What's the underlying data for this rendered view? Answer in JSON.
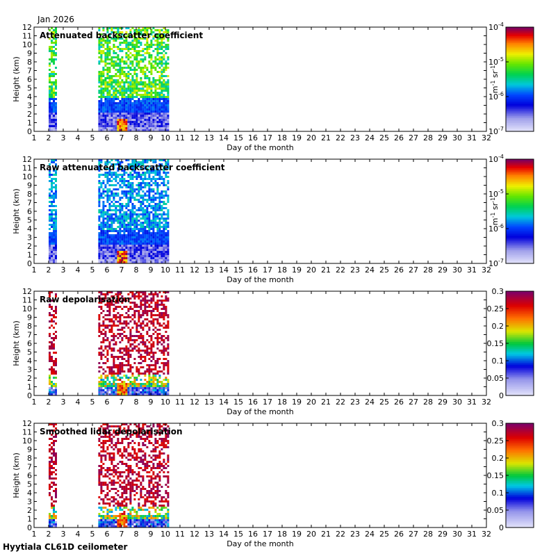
{
  "period_label": "Jan 2026",
  "footer_label": "Hyytiala CL61D ceilometer",
  "chart_data": [
    {
      "type": "heatmap",
      "title": "Attenuated backscatter coefficient",
      "xlabel": "Day of the month",
      "ylabel": "Height (km)",
      "xlim": [
        1,
        32
      ],
      "ylim": [
        0,
        12
      ],
      "x_ticks": [
        1,
        2,
        3,
        4,
        5,
        6,
        7,
        8,
        9,
        10,
        11,
        12,
        13,
        14,
        15,
        16,
        17,
        18,
        19,
        20,
        21,
        22,
        23,
        24,
        25,
        26,
        27,
        28,
        29,
        30,
        31,
        32
      ],
      "y_ticks": [
        0,
        1,
        2,
        3,
        4,
        5,
        6,
        7,
        8,
        9,
        10,
        11,
        12
      ],
      "data_segments": [
        [
          2.0,
          2.5
        ],
        [
          5.4,
          10.2
        ]
      ],
      "colorbar": {
        "scale": "log",
        "range": [
          1e-07,
          0.0001
        ],
        "ticks": [
          "10^-7",
          "10^-6",
          "10^-5",
          "10^-4"
        ],
        "unit": "m-1 sr-1"
      }
    },
    {
      "type": "heatmap",
      "title": "Raw attenuated backscatter coefficient",
      "xlabel": "Day of the month",
      "ylabel": "Height (km)",
      "xlim": [
        1,
        32
      ],
      "ylim": [
        0,
        12
      ],
      "x_ticks": [
        1,
        2,
        3,
        4,
        5,
        6,
        7,
        8,
        9,
        10,
        11,
        12,
        13,
        14,
        15,
        16,
        17,
        18,
        19,
        20,
        21,
        22,
        23,
        24,
        25,
        26,
        27,
        28,
        29,
        30,
        31,
        32
      ],
      "y_ticks": [
        0,
        1,
        2,
        3,
        4,
        5,
        6,
        7,
        8,
        9,
        10,
        11,
        12
      ],
      "data_segments": [
        [
          2.0,
          2.5
        ],
        [
          5.4,
          10.2
        ]
      ],
      "colorbar": {
        "scale": "log",
        "range": [
          1e-07,
          0.0001
        ],
        "ticks": [
          "10^-7",
          "10^-6",
          "10^-5",
          "10^-4"
        ],
        "unit": "m-1 sr-1"
      }
    },
    {
      "type": "heatmap",
      "title": "Raw depolarisation",
      "xlabel": "Day of the month",
      "ylabel": "Height (km)",
      "xlim": [
        1,
        32
      ],
      "ylim": [
        0,
        12
      ],
      "x_ticks": [
        1,
        2,
        3,
        4,
        5,
        6,
        7,
        8,
        9,
        10,
        11,
        12,
        13,
        14,
        15,
        16,
        17,
        18,
        19,
        20,
        21,
        22,
        23,
        24,
        25,
        26,
        27,
        28,
        29,
        30,
        31,
        32
      ],
      "y_ticks": [
        0,
        1,
        2,
        3,
        4,
        5,
        6,
        7,
        8,
        9,
        10,
        11,
        12
      ],
      "data_segments": [
        [
          2.0,
          2.5
        ],
        [
          5.4,
          10.2
        ]
      ],
      "colorbar": {
        "scale": "linear",
        "range": [
          0,
          0.3
        ],
        "ticks": [
          "0",
          "0.05",
          "0.1",
          "0.15",
          "0.2",
          "0.25",
          "0.3"
        ],
        "unit": ""
      }
    },
    {
      "type": "heatmap",
      "title": "Smoothed lidar depolarisation",
      "xlabel": "Day of the month",
      "ylabel": "Height (km)",
      "xlim": [
        1,
        32
      ],
      "ylim": [
        0,
        12
      ],
      "x_ticks": [
        1,
        2,
        3,
        4,
        5,
        6,
        7,
        8,
        9,
        10,
        11,
        12,
        13,
        14,
        15,
        16,
        17,
        18,
        19,
        20,
        21,
        22,
        23,
        24,
        25,
        26,
        27,
        28,
        29,
        30,
        31,
        32
      ],
      "y_ticks": [
        0,
        1,
        2,
        3,
        4,
        5,
        6,
        7,
        8,
        9,
        10,
        11,
        12
      ],
      "data_segments": [
        [
          2.0,
          2.5
        ],
        [
          5.4,
          10.2
        ]
      ],
      "colorbar": {
        "scale": "linear",
        "range": [
          0,
          0.3
        ],
        "ticks": [
          "0",
          "0.05",
          "0.1",
          "0.15",
          "0.2",
          "0.25",
          "0.3"
        ],
        "unit": ""
      }
    }
  ]
}
